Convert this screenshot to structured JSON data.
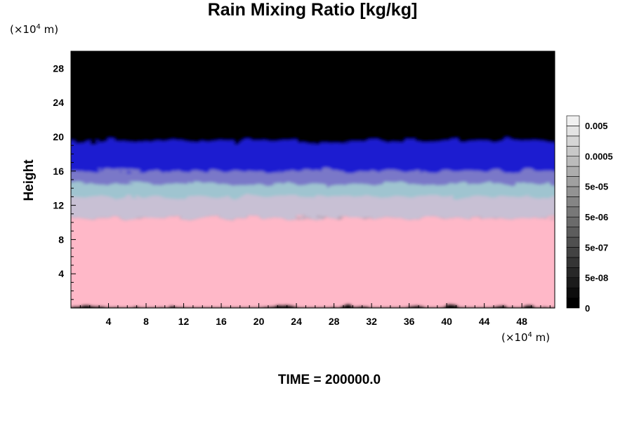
{
  "chart_data": {
    "type": "heatmap",
    "title": "Rain Mixing Ratio [kg/kg]",
    "ylabel": "Height",
    "xlabel": "",
    "x_unit": {
      "prefix": "(×10",
      "exponent": "4",
      "suffix": " m)"
    },
    "y_unit": {
      "prefix": "(×10",
      "exponent": "4",
      "suffix": " m)"
    },
    "xlim": [
      0,
      51.5
    ],
    "ylim": [
      0,
      30
    ],
    "x_ticks": [
      "4",
      "8",
      "12",
      "16",
      "20",
      "24",
      "28",
      "32",
      "36",
      "40",
      "44",
      "48"
    ],
    "y_ticks": [
      "4",
      "8",
      "12",
      "16",
      "20",
      "24",
      "28"
    ],
    "field_layers": [
      {
        "name": "low",
        "y_from": 0,
        "y_to": 10.5,
        "color": "#ffb8c8"
      },
      {
        "name": "mixed",
        "y_from": 10.5,
        "y_to": 13,
        "color": "#c8c0d4"
      },
      {
        "name": "cyan",
        "y_from": 12.5,
        "y_to": 14.5,
        "color": "#9fc4d0"
      },
      {
        "name": "violet",
        "y_from": 14,
        "y_to": 16,
        "color": "#7a78c8"
      },
      {
        "name": "blue",
        "y_from": 15.5,
        "y_to": 19.5,
        "color": "#1a1ad0"
      },
      {
        "name": "top",
        "y_from": 19.5,
        "y_to": 30,
        "color": "#000000"
      }
    ],
    "colorbar": {
      "labels": [
        "0.005",
        "0.0005",
        "5e-05",
        "5e-06",
        "5e-07",
        "5e-08",
        "0"
      ],
      "level_count": 19,
      "color_low": "#000000",
      "color_high": "#f0f0f0"
    },
    "time_label": "TIME = 200000.0"
  }
}
